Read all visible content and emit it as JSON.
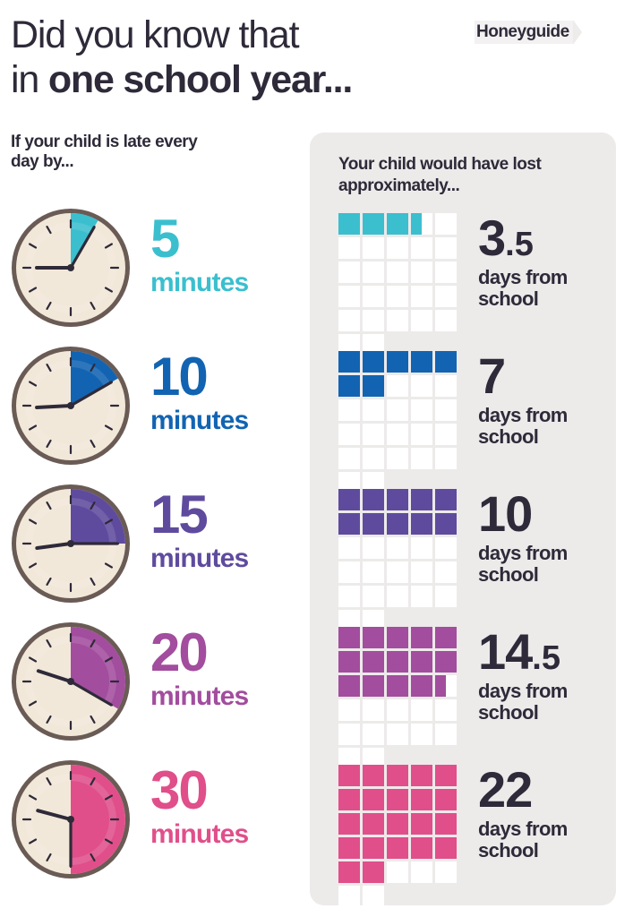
{
  "title": {
    "line1": "Did you know that",
    "line2_prefix": "in ",
    "line2_bold": "one school year..."
  },
  "logo": {
    "text": "Honeyguide"
  },
  "left_heading": "If your child is late every day by...",
  "right_heading": "Your child would have lost approximately...",
  "colors": {
    "dark": "#2e2a39",
    "panel": "#edeaea",
    "clock_face": "#f2e8d9",
    "clock_rim": "#6a5b55"
  },
  "rows": [
    {
      "minutes": "5",
      "minutes_label": "minutes",
      "days_int": "3",
      "days_frac": ".5",
      "days_value": 3.5,
      "days_label": "days from school",
      "color": "#3bbfce",
      "clock_hour": 9.0,
      "clock_minute": 5
    },
    {
      "minutes": "10",
      "minutes_label": "minutes",
      "days_int": "7",
      "days_frac": "",
      "days_value": 7,
      "days_label": "days from school",
      "color": "#1264b2",
      "clock_hour": 8.9,
      "clock_minute": 10
    },
    {
      "minutes": "15",
      "minutes_label": "minutes",
      "days_int": "10",
      "days_frac": "",
      "days_value": 10,
      "days_label": "days from school",
      "color": "#5f4b9e",
      "clock_hour": 8.75,
      "clock_minute": 15
    },
    {
      "minutes": "20",
      "minutes_label": "minutes",
      "days_int": "14",
      "days_frac": ".5",
      "days_value": 14.5,
      "days_label": "days from school",
      "color": "#a24d9e",
      "clock_hour": 9.6,
      "clock_minute": 20
    },
    {
      "minutes": "30",
      "minutes_label": "minutes",
      "days_int": "22",
      "days_frac": "",
      "days_value": 22,
      "days_label": "days from school",
      "color": "#e04f8a",
      "clock_hour": 9.5,
      "clock_minute": 30
    }
  ]
}
